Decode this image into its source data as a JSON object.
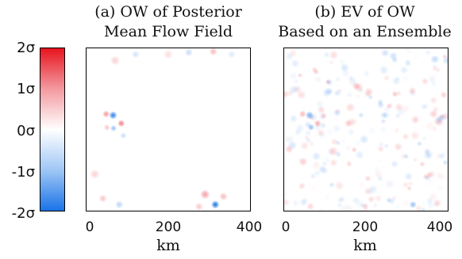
{
  "chart_data": [
    {
      "type": "heatmap",
      "title": "(a) OW of Posterior Mean Flow Field",
      "title_lines": [
        "(a) OW of Posterior",
        "Mean Flow Field"
      ],
      "xlabel": "km",
      "xlim": [
        0,
        400
      ],
      "ylim": [
        0,
        400
      ],
      "x_ticks": [
        "0",
        "200",
        "400"
      ],
      "features": [
        {
          "x": 65,
          "y": 235,
          "value": -1.8,
          "radius": 10
        },
        {
          "x": 85,
          "y": 215,
          "value": 1.1,
          "radius": 9
        },
        {
          "x": 48,
          "y": 238,
          "value": 0.9,
          "radius": 9
        },
        {
          "x": 66,
          "y": 203,
          "value": -0.9,
          "radius": 8
        },
        {
          "x": 90,
          "y": 185,
          "value": -0.5,
          "radius": 8
        },
        {
          "x": 50,
          "y": 205,
          "value": 0.5,
          "radius": 8
        },
        {
          "x": 315,
          "y": 15,
          "value": -2.0,
          "radius": 10
        },
        {
          "x": 290,
          "y": 40,
          "value": 0.8,
          "radius": 12
        },
        {
          "x": 335,
          "y": 35,
          "value": 0.6,
          "radius": 10
        },
        {
          "x": 275,
          "y": 10,
          "value": 0.5,
          "radius": 10
        },
        {
          "x": 80,
          "y": 15,
          "value": -0.6,
          "radius": 10
        },
        {
          "x": 40,
          "y": 30,
          "value": 0.5,
          "radius": 10
        },
        {
          "x": 20,
          "y": 90,
          "value": 0.4,
          "radius": 12
        },
        {
          "x": 70,
          "y": 370,
          "value": 0.4,
          "radius": 12
        },
        {
          "x": 120,
          "y": 385,
          "value": -0.4,
          "radius": 10
        },
        {
          "x": 200,
          "y": 385,
          "value": 0.3,
          "radius": 12
        },
        {
          "x": 250,
          "y": 390,
          "value": -0.5,
          "radius": 10
        },
        {
          "x": 310,
          "y": 392,
          "value": 0.6,
          "radius": 10
        },
        {
          "x": 355,
          "y": 385,
          "value": -0.3,
          "radius": 10
        }
      ]
    },
    {
      "type": "heatmap",
      "title": "(b) EV of OW Based on an Ensemble",
      "title_lines": [
        "(b) EV of OW",
        "Based on an Ensemble"
      ],
      "xlabel": "km",
      "xlim": [
        0,
        400
      ],
      "ylim": [
        0,
        400
      ],
      "x_ticks": [
        "0",
        "200",
        "400"
      ],
      "noise_amplitude": 0.45,
      "features": [
        {
          "x": 62,
          "y": 235,
          "value": -1.1,
          "radius": 10
        },
        {
          "x": 82,
          "y": 215,
          "value": 0.7,
          "radius": 9
        },
        {
          "x": 45,
          "y": 238,
          "value": 0.6,
          "radius": 9
        },
        {
          "x": 66,
          "y": 205,
          "value": -0.6,
          "radius": 8
        },
        {
          "x": 315,
          "y": 15,
          "value": -0.9,
          "radius": 9
        }
      ]
    }
  ],
  "colorbar": {
    "ticks": [
      "2σ",
      "1σ",
      "0σ",
      "-1σ",
      "-2σ"
    ],
    "colors": {
      "pos": "#e8141e",
      "neg": "#1a73e8",
      "zero": "#ffffff"
    }
  }
}
